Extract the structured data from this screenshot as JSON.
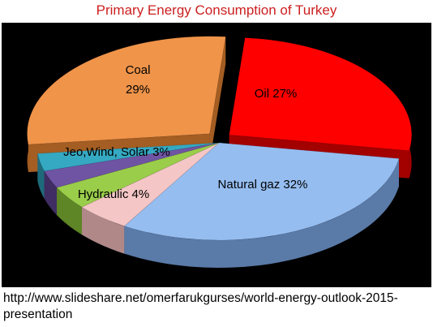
{
  "chart_data": {
    "type": "pie",
    "title": "Primary Energy Consumption of Turkey",
    "slices": [
      {
        "label": "Oil 27%",
        "value": 27,
        "color": "#ff0000",
        "side": "#a30000",
        "explode": 1
      },
      {
        "label": "Natural gaz 32%",
        "value": 32,
        "color": "#95bdf0",
        "side": "#5a7aa8",
        "explode": 0
      },
      {
        "label": "",
        "value": 5,
        "color": "#f4c6c6",
        "side": "#b08888",
        "explode": 0
      },
      {
        "label": "Hydraulic 4%",
        "value": 4,
        "color": "#9acd4a",
        "side": "#5e8526",
        "explode": 0
      },
      {
        "label": "",
        "value": 3,
        "color": "#6f54a3",
        "side": "#3f2d63",
        "explode": 0
      },
      {
        "label": "Jeo,Wind, Solar 3%",
        "value": 3,
        "color": "#35a9c2",
        "side": "#1e6a7b",
        "explode": 0
      },
      {
        "label": "Coal\n29%",
        "value": 29,
        "color": "#f0944a",
        "side": "#a45d22",
        "explode": 1
      }
    ],
    "legend": "none",
    "source": "http://www.slideshare.net/omerfarukgurses/world-energy-outlook-2015-presentation"
  }
}
